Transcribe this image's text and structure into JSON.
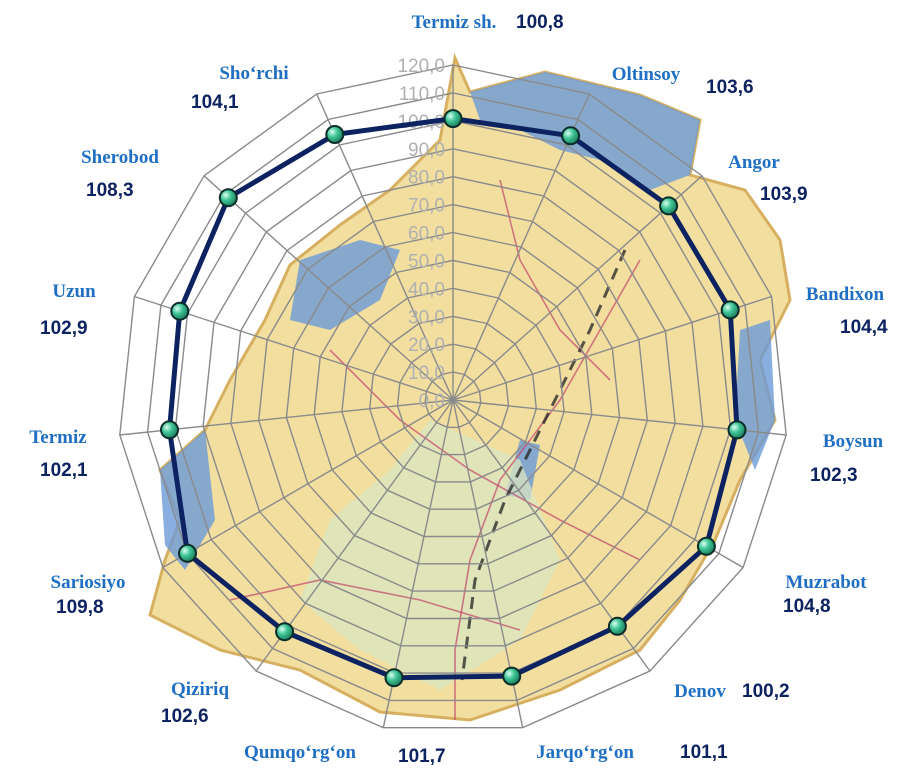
{
  "chart_data": {
    "type": "radar",
    "categories": [
      "Termiz sh.",
      "Oltinsoy",
      "Angor",
      "Bandixon",
      "Boysun",
      "Muzrabot",
      "Denov",
      "Jarqo‘rg‘on",
      "Qumqo‘rg‘on",
      "Qiziriq",
      "Sariosiyo",
      "Termiz",
      "Uzun",
      "Sherobod",
      "Sho‘rchi"
    ],
    "value_labels": [
      "100,8",
      "103,6",
      "103,9",
      "104,4",
      "102,3",
      "104,8",
      "100,2",
      "101,1",
      "101,7",
      "102,6",
      "109,8",
      "102,1",
      "102,9",
      "108,3",
      "104,1"
    ],
    "series": [
      {
        "values": [
          100.8,
          103.6,
          103.9,
          104.4,
          102.3,
          104.8,
          100.2,
          101.1,
          101.7,
          102.6,
          109.8,
          102.1,
          102.9,
          108.3,
          104.1
        ]
      }
    ],
    "ticks": [
      "0,0",
      "10,0",
      "20,0",
      "30,0",
      "40,0",
      "50,0",
      "60,0",
      "70,0",
      "80,0",
      "90,0",
      "100,0",
      "110,0",
      "120,0"
    ],
    "rlim": [
      0,
      120
    ],
    "grid": true,
    "colors": {
      "line": "#0d2260",
      "marker": "#3cc394",
      "category_text": "#1f6fc4",
      "value_text": "#0d2260",
      "grid": "#8a8a8a",
      "tick_text": "#b0b0b0",
      "map_land": "#f2dfa0",
      "map_water": "#6b9ad8"
    }
  }
}
